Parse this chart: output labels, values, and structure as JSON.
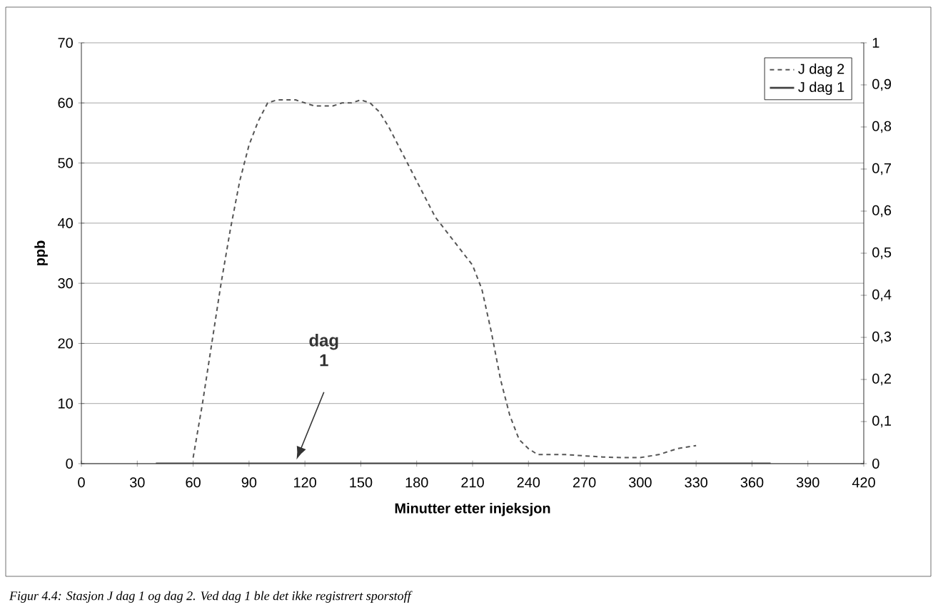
{
  "chart_data": {
    "type": "line",
    "xlabel": "Minutter etter injeksjon",
    "ylabel": "ppb",
    "xlim": [
      0,
      420
    ],
    "xticks": [
      0,
      30,
      60,
      90,
      120,
      150,
      180,
      210,
      240,
      270,
      300,
      330,
      360,
      390,
      420
    ],
    "ylim": [
      0,
      70
    ],
    "yticks": [
      0,
      10,
      20,
      30,
      40,
      50,
      60,
      70
    ],
    "y2lim": [
      0,
      1
    ],
    "y2ticks": [
      0,
      {
        "value": 0.1,
        "label": "0,1"
      },
      {
        "value": 0.2,
        "label": "0,2"
      },
      {
        "value": 0.3,
        "label": "0,3"
      },
      {
        "value": 0.4,
        "label": "0,4"
      },
      {
        "value": 0.5,
        "label": "0,5"
      },
      {
        "value": 0.6,
        "label": "0,6"
      },
      {
        "value": 0.7,
        "label": "0,7"
      },
      {
        "value": 0.8,
        "label": "0,8"
      },
      {
        "value": 0.9,
        "label": "0,9"
      },
      1
    ],
    "grid": "y",
    "legend": "top right",
    "series": [
      {
        "name": "J dag 2",
        "color": "#555555",
        "line_style": "dashed",
        "x": [
          60,
          65,
          70,
          75,
          80,
          85,
          90,
          95,
          100,
          105,
          110,
          115,
          120,
          125,
          130,
          135,
          140,
          145,
          150,
          155,
          160,
          165,
          170,
          180,
          190,
          200,
          210,
          215,
          220,
          225,
          230,
          235,
          240,
          245,
          250,
          260,
          270,
          280,
          290,
          300,
          310,
          320,
          330
        ],
        "values": [
          1,
          10,
          20,
          30,
          39,
          47,
          53,
          57,
          60,
          60.5,
          60.5,
          60.5,
          60,
          59.5,
          59.5,
          59.5,
          60,
          60,
          60.5,
          60,
          58.5,
          56,
          53,
          47,
          41,
          37,
          33,
          29,
          22,
          14,
          8,
          4,
          2.5,
          1.5,
          1.5,
          1.5,
          1.3,
          1.1,
          1,
          1,
          1.5,
          2.5,
          3
        ]
      },
      {
        "name": "J dag 1",
        "color": "#444444",
        "line_style": "solid",
        "axis": "y2",
        "x": [
          40,
          370
        ],
        "values": [
          0,
          0
        ]
      }
    ],
    "annotations": [
      "dag 1",
      "Figur 4.4: Stasjon J dag 1 og dag 2. Ved dag 1 ble det ikke registrert sporstoff"
    ]
  }
}
